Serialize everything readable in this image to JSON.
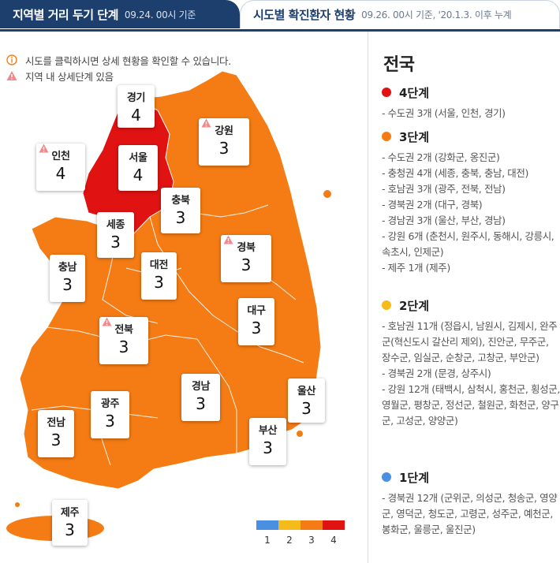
{
  "tabs": [
    {
      "title": "지역별 거리 두기 단계",
      "subtitle": "09.24. 00시 기준"
    },
    {
      "title": "시도별 확진환자 현황",
      "subtitle": "09.26. 00시 기준, '20.1.3. 이후 누계"
    }
  ],
  "notes": [
    {
      "icon": "info-circle-icon",
      "text": "시도를 클릭하시면 상세 현황을 확인할 수 있습니다."
    },
    {
      "icon": "warning-triangle-icon",
      "text": "지역 내 상세단계 있음"
    }
  ],
  "colors": {
    "level1": "#4a90e2",
    "level2": "#f5bb1a",
    "level3": "#f57c14",
    "level4": "#e01212",
    "navy": "#1c3f6e"
  },
  "regions": [
    {
      "key": "gyeonggi",
      "name": "경기",
      "level": "4",
      "warning": false
    },
    {
      "key": "gangwon",
      "name": "강원",
      "level": "3",
      "warning": true
    },
    {
      "key": "incheon",
      "name": "인천",
      "level": "4",
      "warning": true
    },
    {
      "key": "seoul",
      "name": "서울",
      "level": "4",
      "warning": false
    },
    {
      "key": "chungbuk",
      "name": "충북",
      "level": "3",
      "warning": false
    },
    {
      "key": "sejong",
      "name": "세종",
      "level": "3",
      "warning": false
    },
    {
      "key": "gyeongbuk",
      "name": "경북",
      "level": "3",
      "warning": true
    },
    {
      "key": "chungnam",
      "name": "충남",
      "level": "3",
      "warning": false
    },
    {
      "key": "daejeon",
      "name": "대전",
      "level": "3",
      "warning": false
    },
    {
      "key": "daegu",
      "name": "대구",
      "level": "3",
      "warning": false
    },
    {
      "key": "jeonbuk",
      "name": "전북",
      "level": "3",
      "warning": true
    },
    {
      "key": "gyeongnam",
      "name": "경남",
      "level": "3",
      "warning": false
    },
    {
      "key": "ulsan",
      "name": "울산",
      "level": "3",
      "warning": false
    },
    {
      "key": "gwangju",
      "name": "광주",
      "level": "3",
      "warning": false
    },
    {
      "key": "jeonnam",
      "name": "전남",
      "level": "3",
      "warning": false
    },
    {
      "key": "busan",
      "name": "부산",
      "level": "3",
      "warning": false
    },
    {
      "key": "jeju",
      "name": "제주",
      "level": "3",
      "warning": false
    }
  ],
  "legend": [
    "1",
    "2",
    "3",
    "4"
  ],
  "panel": {
    "title": "전국",
    "levels": [
      {
        "label": "4단계",
        "color": "#e01212",
        "items": [
          "- 수도권 3개 (서울, 인천, 경기)"
        ]
      },
      {
        "label": "3단계",
        "color": "#f57c14",
        "items": [
          "- 수도권 2개 (강화군, 옹진군)",
          "- 충청권 4개 (세종, 충북, 충남, 대전)",
          "- 호남권 3개 (광주, 전북, 전남)",
          "- 경북권 2개 (대구, 경북)",
          "- 경남권 3개 (울산, 부산, 경남)",
          "- 강원 6개 (춘천시, 원주시, 동해시, 강릉시, 속초시, 인제군)",
          "- 제주 1개 (제주)"
        ]
      },
      {
        "label": "2단계",
        "color": "#f5bb1a",
        "items": [
          "- 호남권 11개 (정읍시, 남원시, 김제시, 완주군(혁신도시 갈산리 제외), 진안군, 무주군, 장수군, 임실군, 순창군, 고창군, 부안군)",
          "- 경북권 2개 (문경, 상주시)",
          "- 강원 12개 (태백시, 삼척시, 홍천군, 횡성군, 영월군, 평창군, 정선군, 철원군, 화천군, 양구군, 고성군, 양양군)"
        ]
      },
      {
        "label": "1단계",
        "color": "#4a90e2",
        "items": [
          "- 경북권 12개 (군위군, 의성군, 청송군, 영양군, 영덕군, 청도군, 고령군, 성주군, 예천군, 봉화군, 울릉군, 울진군)"
        ]
      }
    ]
  }
}
